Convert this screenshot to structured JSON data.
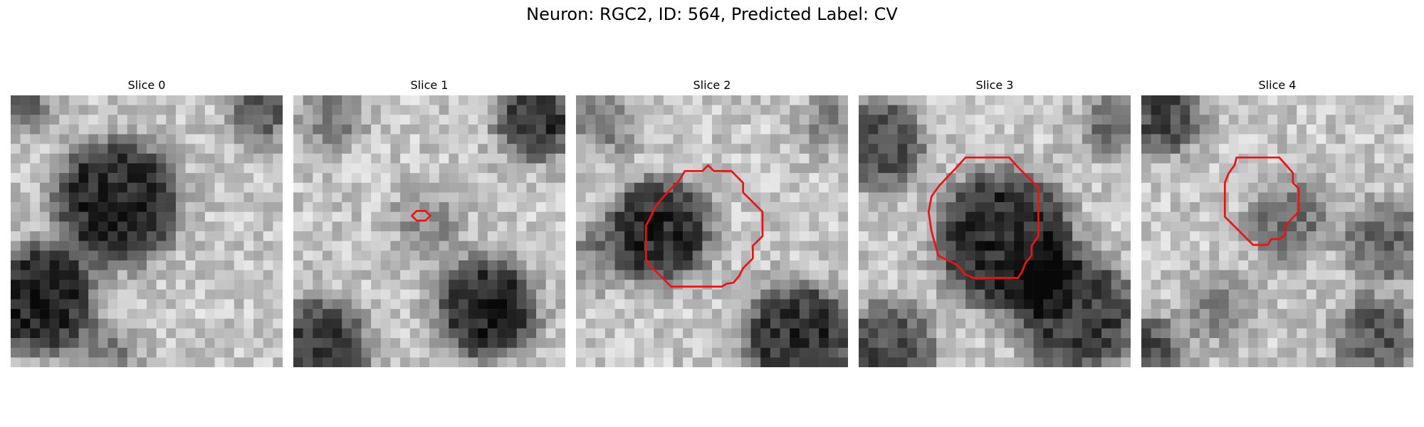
{
  "figure": {
    "title": "Neuron: RGC2, ID: 564, Predicted Label: CV"
  },
  "panels": [
    {
      "title": "Slice 0",
      "contour": false
    },
    {
      "title": "Slice 1",
      "contour": true
    },
    {
      "title": "Slice 2",
      "contour": true
    },
    {
      "title": "Slice 3",
      "contour": true
    },
    {
      "title": "Slice 4",
      "contour": true
    }
  ],
  "colors": {
    "contour": "#e8141a"
  }
}
